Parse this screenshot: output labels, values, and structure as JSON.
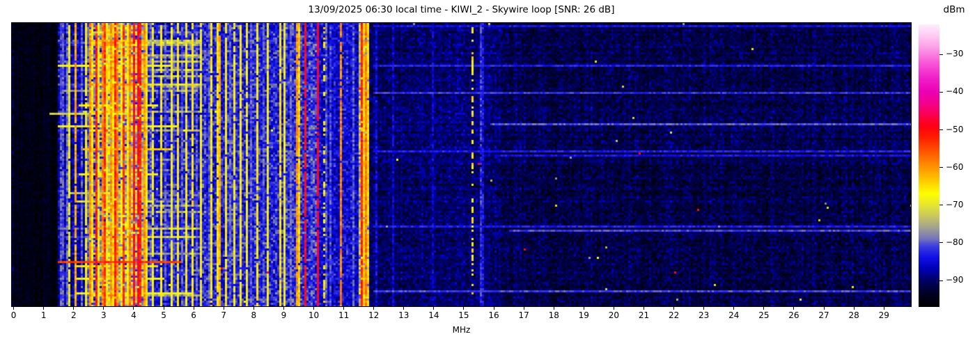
{
  "chart_data": {
    "type": "heatmap",
    "subtype": "radio-spectrogram-waterfall",
    "title": "13/09/2025 06:30 local time - KIWI_2 - Skywire loop [SNR: 26 dB]",
    "xlabel": "MHz",
    "ylabel": "",
    "x_range": [
      -0.06,
      29.9
    ],
    "x_ticks": [
      {
        "label": "0",
        "v": 0
      },
      {
        "label": "1",
        "v": 1
      },
      {
        "label": "2",
        "v": 2
      },
      {
        "label": "3",
        "v": 3
      },
      {
        "label": "4",
        "v": 4
      },
      {
        "label": "5",
        "v": 5
      },
      {
        "label": "6",
        "v": 6
      },
      {
        "label": "7",
        "v": 7
      },
      {
        "label": "8",
        "v": 8
      },
      {
        "label": "9",
        "v": 9
      },
      {
        "label": "10",
        "v": 10
      },
      {
        "label": "11",
        "v": 11
      },
      {
        "label": "12",
        "v": 12
      },
      {
        "label": "13",
        "v": 13
      },
      {
        "label": "14",
        "v": 14
      },
      {
        "label": "15",
        "v": 15
      },
      {
        "label": "16",
        "v": 16
      },
      {
        "label": "17",
        "v": 17
      },
      {
        "label": "18",
        "v": 18
      },
      {
        "label": "19",
        "v": 19
      },
      {
        "label": "20",
        "v": 20
      },
      {
        "label": "21",
        "v": 21
      },
      {
        "label": "22",
        "v": 22
      },
      {
        "label": "23",
        "v": 23
      },
      {
        "label": "24",
        "v": 24
      },
      {
        "label": "25",
        "v": 25
      },
      {
        "label": "26",
        "v": 26
      },
      {
        "label": "27",
        "v": 27
      },
      {
        "label": "28",
        "v": 28
      },
      {
        "label": "29",
        "v": 29
      }
    ],
    "grid": false,
    "seed": 1337,
    "colorbar": {
      "label": "dBm",
      "position": "right",
      "range": [
        -97,
        -22
      ],
      "ticks": [
        {
          "label": "−30",
          "v": -30
        },
        {
          "label": "−40",
          "v": -40
        },
        {
          "label": "−50",
          "v": -50
        },
        {
          "label": "−60",
          "v": -60
        },
        {
          "label": "−70",
          "v": -70
        },
        {
          "label": "−80",
          "v": -80
        },
        {
          "label": "−90",
          "v": -90
        }
      ],
      "colormap": [
        {
          "v": -97,
          "c": "#000000"
        },
        {
          "v": -94,
          "c": "#00001e"
        },
        {
          "v": -90,
          "c": "#000064"
        },
        {
          "v": -87,
          "c": "#0000b4"
        },
        {
          "v": -84,
          "c": "#1010e6"
        },
        {
          "v": -81,
          "c": "#3c3ce0"
        },
        {
          "v": -79,
          "c": "#7474bc"
        },
        {
          "v": -76,
          "c": "#a2a292"
        },
        {
          "v": -73,
          "c": "#c8c85e"
        },
        {
          "v": -70,
          "c": "#e6e632"
        },
        {
          "v": -67,
          "c": "#ffff00"
        },
        {
          "v": -64,
          "c": "#ffd200"
        },
        {
          "v": -61,
          "c": "#ffa500"
        },
        {
          "v": -58,
          "c": "#ff7800"
        },
        {
          "v": -55,
          "c": "#ff4b00"
        },
        {
          "v": -52,
          "c": "#ff1e00"
        },
        {
          "v": -49,
          "c": "#ff0014"
        },
        {
          "v": -46,
          "c": "#fc0050"
        },
        {
          "v": -43,
          "c": "#f5008c"
        },
        {
          "v": -40,
          "c": "#eb00b4"
        },
        {
          "v": -36,
          "c": "#f123cb"
        },
        {
          "v": -32,
          "c": "#f95ad9"
        },
        {
          "v": -28,
          "c": "#fda0e8"
        },
        {
          "v": -24,
          "c": "#ffd7f6"
        },
        {
          "v": -22,
          "c": "#ffeefc"
        }
      ]
    },
    "noise_bands": [
      {
        "f0": 0.0,
        "f1": 1.45,
        "base": -95,
        "var": 2.5
      },
      {
        "f0": 1.45,
        "f1": 2.5,
        "base": -87,
        "var": 5
      },
      {
        "f0": 2.5,
        "f1": 3.0,
        "base": -76,
        "var": 9
      },
      {
        "f0": 3.0,
        "f1": 4.2,
        "base": -72,
        "var": 9
      },
      {
        "f0": 4.2,
        "f1": 4.45,
        "base": -76,
        "var": 9
      },
      {
        "f0": 4.45,
        "f1": 6.3,
        "base": -84,
        "var": 6.5
      },
      {
        "f0": 6.3,
        "f1": 9.3,
        "base": -83,
        "var": 7
      },
      {
        "f0": 9.3,
        "f1": 10.1,
        "base": -82,
        "var": 7
      },
      {
        "f0": 10.1,
        "f1": 11.5,
        "base": -85,
        "var": 6
      },
      {
        "f0": 11.5,
        "f1": 11.85,
        "base": -77,
        "var": 8
      },
      {
        "f0": 11.85,
        "f1": 16.2,
        "base": -90,
        "var": 4.5
      },
      {
        "f0": 16.2,
        "f1": 29.96,
        "base": -91.5,
        "var": 4.5
      }
    ],
    "carriers": [
      {
        "f": 1.55,
        "db": -80
      },
      {
        "f": 1.63,
        "db": -80
      },
      {
        "f": 1.76,
        "db": -79
      },
      {
        "f": 2.24,
        "db": -80
      },
      {
        "f": 2.45,
        "db": -80
      },
      {
        "f": 4.55,
        "db": -80
      },
      {
        "f": 5.05,
        "db": -80
      },
      {
        "f": 5.3,
        "db": -81
      },
      {
        "f": 5.55,
        "db": -80
      },
      {
        "f": 6.05,
        "db": -80
      },
      {
        "f": 6.45,
        "db": -80
      },
      {
        "f": 7.2,
        "db": -80
      },
      {
        "f": 7.9,
        "db": -80
      },
      {
        "f": 8.3,
        "db": -81
      },
      {
        "f": 9.2,
        "db": -80
      },
      {
        "f": 10.35,
        "db": -80
      },
      {
        "f": 10.55,
        "db": -81
      },
      {
        "f": 11.3,
        "db": -80
      },
      {
        "f": 12.08,
        "db": -85
      },
      {
        "f": 12.6,
        "db": -86
      },
      {
        "f": 13.9,
        "db": -86
      },
      {
        "f": 15.55,
        "db": -82
      },
      {
        "f": 15.62,
        "db": -84
      },
      {
        "f": 1.84,
        "db": -69
      },
      {
        "f": 2.36,
        "db": -68
      },
      {
        "f": 2.62,
        "db": -66
      },
      {
        "f": 2.8,
        "db": -67
      },
      {
        "f": 3.05,
        "db": -66
      },
      {
        "f": 3.3,
        "db": -67
      },
      {
        "f": 3.55,
        "db": -66
      },
      {
        "f": 3.75,
        "db": -67
      },
      {
        "f": 4.42,
        "db": -66
      },
      {
        "f": 4.62,
        "db": -68
      },
      {
        "f": 4.9,
        "db": -67
      },
      {
        "f": 5.2,
        "db": -68
      },
      {
        "f": 5.45,
        "db": -67
      },
      {
        "f": 5.75,
        "db": -68
      },
      {
        "f": 5.95,
        "db": -67
      },
      {
        "f": 6.2,
        "db": -68
      },
      {
        "f": 6.55,
        "db": -67
      },
      {
        "f": 6.75,
        "db": -66
      },
      {
        "f": 7.05,
        "db": -67
      },
      {
        "f": 7.35,
        "db": -68
      },
      {
        "f": 7.55,
        "db": -67
      },
      {
        "f": 7.75,
        "db": -68
      },
      {
        "f": 8.1,
        "db": -67
      },
      {
        "f": 8.45,
        "db": -68
      },
      {
        "f": 8.85,
        "db": -66
      },
      {
        "f": 9.0,
        "db": -68
      },
      {
        "f": 9.45,
        "db": -64
      },
      {
        "f": 11.62,
        "db": -64,
        "w": 2
      },
      {
        "f": 11.78,
        "db": -65
      },
      {
        "f": 15.25,
        "db": -66,
        "dash": true
      },
      {
        "f": 10.3,
        "db": -66,
        "dash": true
      },
      {
        "f": 2.04,
        "db": -62
      },
      {
        "f": 2.55,
        "db": -59
      },
      {
        "f": 2.9,
        "db": -59
      },
      {
        "f": 3.2,
        "db": -60
      },
      {
        "f": 3.45,
        "db": -59
      },
      {
        "f": 3.85,
        "db": -58
      },
      {
        "f": 4.3,
        "db": -60
      },
      {
        "f": 6.85,
        "db": -62
      },
      {
        "f": 9.4,
        "db": -60
      },
      {
        "f": 10.87,
        "db": -59
      },
      {
        "f": 11.68,
        "db": -58
      },
      {
        "f": 2.7,
        "db": -52
      },
      {
        "f": 3.0,
        "db": -53
      },
      {
        "f": 3.38,
        "db": -52
      },
      {
        "f": 3.62,
        "db": -53
      },
      {
        "f": 3.95,
        "db": -50
      },
      {
        "f": 4.1,
        "db": -49
      },
      {
        "f": 4.22,
        "db": -52
      },
      {
        "f": 9.72,
        "db": -50
      },
      {
        "f": 10.08,
        "db": -48
      },
      {
        "f": 11.55,
        "db": -52
      }
    ],
    "streaks": [
      {
        "y": 0.01,
        "f0": 12.0,
        "f1": 29.96,
        "db": -84
      },
      {
        "y": 0.145,
        "f0": 1.5,
        "f1": 5.2,
        "db": -67
      },
      {
        "y": 0.15,
        "f0": 12.0,
        "f1": 29.96,
        "db": -83
      },
      {
        "y": 0.24,
        "f0": 1.6,
        "f1": 4.8,
        "db": -77
      },
      {
        "y": 0.245,
        "f0": 12.0,
        "f1": 29.96,
        "db": -82
      },
      {
        "y": 0.29,
        "f0": 2.2,
        "f1": 4.8,
        "db": -66
      },
      {
        "y": 0.32,
        "f0": 1.2,
        "f1": 4.3,
        "db": -72
      },
      {
        "y": 0.355,
        "f0": 15.9,
        "f1": 29.96,
        "db": -80
      },
      {
        "y": 0.36,
        "f0": 1.5,
        "f1": 5.5,
        "db": -69
      },
      {
        "y": 0.445,
        "f0": 2.3,
        "f1": 5.2,
        "db": -63
      },
      {
        "y": 0.45,
        "f0": 12.0,
        "f1": 29.96,
        "db": -83
      },
      {
        "y": 0.47,
        "f0": 16.0,
        "f1": 29.96,
        "db": -84
      },
      {
        "y": 0.535,
        "f0": 2.2,
        "f1": 4.8,
        "db": -69
      },
      {
        "y": 0.6,
        "f0": 1.8,
        "f1": 4.5,
        "db": -73
      },
      {
        "y": 0.63,
        "f0": 2.0,
        "f1": 4.6,
        "db": -71
      },
      {
        "y": 0.72,
        "f0": 12.0,
        "f1": 29.96,
        "db": -83
      },
      {
        "y": 0.735,
        "f0": 16.5,
        "f1": 29.96,
        "db": -81
      },
      {
        "y": 0.845,
        "f0": 1.5,
        "f1": 5.6,
        "db": -54
      },
      {
        "y": 0.862,
        "f0": 2.0,
        "f1": 4.8,
        "db": -65
      },
      {
        "y": 0.9,
        "f0": 2.0,
        "f1": 5.0,
        "db": -69
      },
      {
        "y": 0.95,
        "f0": 12.0,
        "f1": 29.96,
        "db": -81
      },
      {
        "y": 0.956,
        "f0": 2.0,
        "f1": 6.0,
        "db": -69
      }
    ]
  }
}
